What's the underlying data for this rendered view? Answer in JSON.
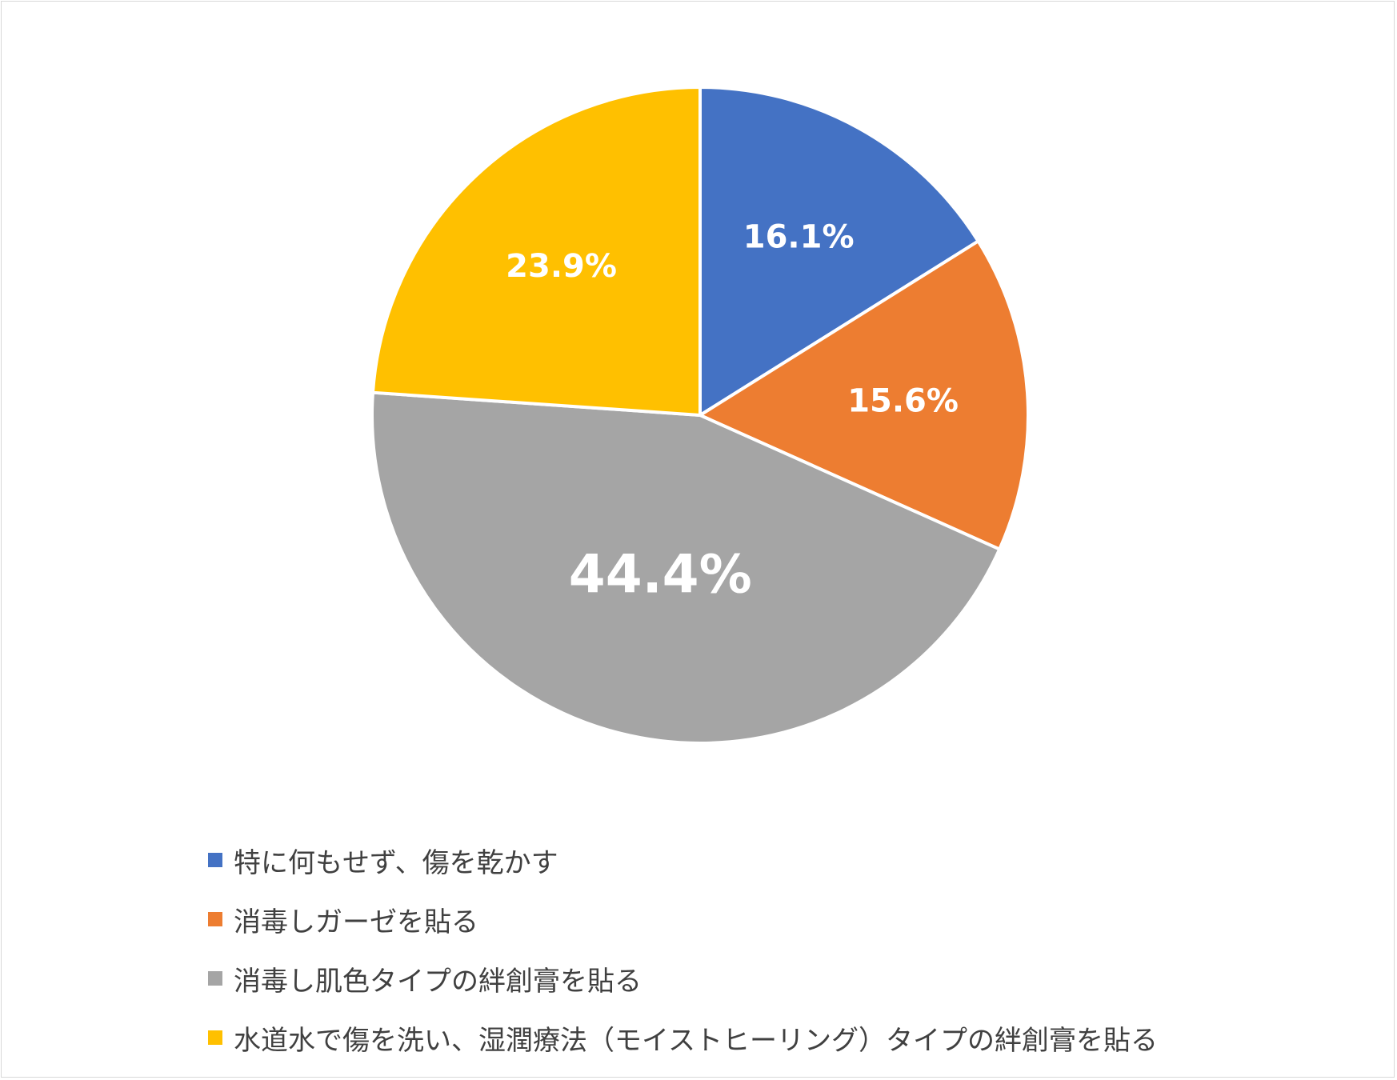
{
  "chart_data": {
    "type": "pie",
    "categories": [
      "特に何もせず、傷を乾かす",
      "消毒しガーゼを貼る",
      "消毒し肌色タイプの絆創膏を貼る",
      "水道水で傷を洗い、湿潤療法（モイストヒーリング）タイプの絆創膏を貼る"
    ],
    "values": [
      16.1,
      15.6,
      44.4,
      23.9
    ],
    "data_labels": [
      "16.1%",
      "15.6%",
      "44.4%",
      "23.9%"
    ],
    "colors": [
      "#4472C4",
      "#ED7D31",
      "#A5A5A5",
      "#FFC000"
    ],
    "start_angle": "12 o'clock",
    "direction": "clockwise",
    "legend_position": "bottom-left"
  }
}
